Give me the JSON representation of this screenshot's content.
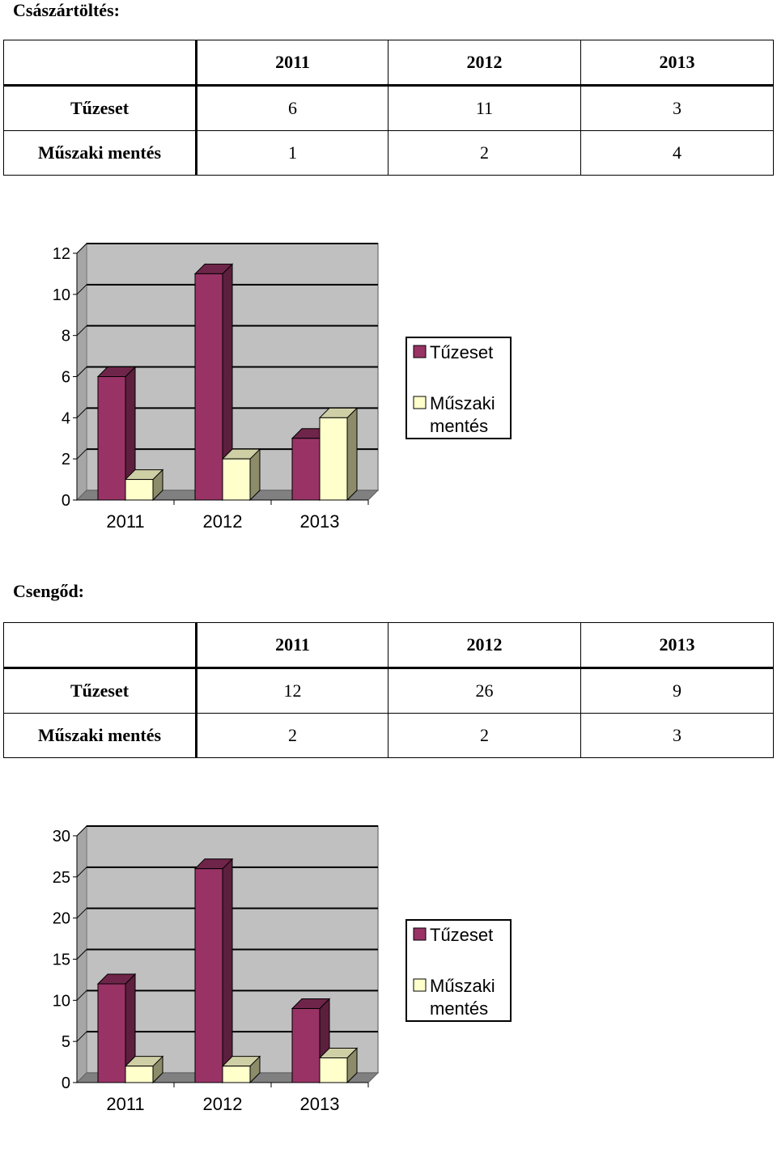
{
  "sections": [
    {
      "title": "Császártöltés:",
      "table": {
        "headers": [
          "2011",
          "2012",
          "2013"
        ],
        "rows": [
          {
            "label": "Tűzeset",
            "values": [
              "6",
              "11",
              "3"
            ]
          },
          {
            "label": "Műszaki mentés",
            "values": [
              "1",
              "2",
              "4"
            ]
          }
        ]
      }
    },
    {
      "title": "Csengőd:",
      "table": {
        "headers": [
          "2011",
          "2012",
          "2013"
        ],
        "rows": [
          {
            "label": "Tűzeset",
            "values": [
              "12",
              "26",
              "9"
            ]
          },
          {
            "label": "Műszaki mentés",
            "values": [
              "2",
              "2",
              "3"
            ]
          }
        ]
      }
    }
  ],
  "colors": {
    "series1_front": "#993366",
    "series1_side": "#5c1f3d",
    "series1_top": "#6e2549",
    "series2_front": "#ffffcc",
    "series2_side": "#8c8c6a",
    "series2_top": "#cfcfa5",
    "wall": "#c0c0c0",
    "floor": "#808080"
  },
  "chart_data": [
    {
      "type": "bar",
      "categories": [
        "2011",
        "2012",
        "2013"
      ],
      "series": [
        {
          "name": "Tűzeset",
          "values": [
            6,
            11,
            3
          ]
        },
        {
          "name": "Műszaki mentés",
          "values": [
            1,
            2,
            4
          ]
        }
      ],
      "ylim": [
        0,
        12
      ],
      "yticks": [
        0,
        2,
        4,
        6,
        8,
        10,
        12
      ],
      "yticklabels": [
        "0",
        "2",
        "4",
        "6",
        "8",
        "10",
        "12"
      ],
      "legend": {
        "position": "right",
        "entries": [
          [
            "Tűzeset"
          ],
          [
            "Műszaki",
            "mentés"
          ]
        ]
      },
      "grid": true
    },
    {
      "type": "bar",
      "categories": [
        "2011",
        "2012",
        "2013"
      ],
      "series": [
        {
          "name": "Tűzeset",
          "values": [
            12,
            26,
            9
          ]
        },
        {
          "name": "Műszaki mentés",
          "values": [
            2,
            2,
            3
          ]
        }
      ],
      "ylim": [
        0,
        30
      ],
      "yticks": [
        0,
        5,
        10,
        15,
        20,
        25,
        30
      ],
      "yticklabels": [
        "0",
        "5",
        "10",
        "15",
        "20",
        "25",
        "30"
      ],
      "legend": {
        "position": "right",
        "entries": [
          [
            "Tűzeset"
          ],
          [
            "Műszaki",
            "mentés"
          ]
        ]
      },
      "grid": true
    }
  ]
}
